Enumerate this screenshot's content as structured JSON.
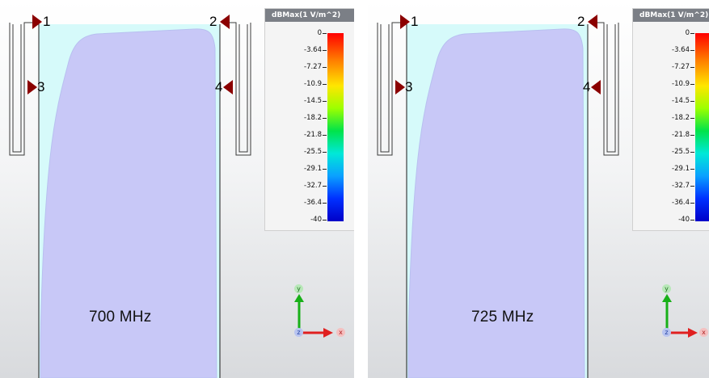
{
  "panels": [
    {
      "frequency": "700 MHz",
      "ports": [
        "1",
        "2",
        "3",
        "4"
      ],
      "legend": {
        "title": "dBMax(1 V/m^2)",
        "ticks": [
          "0",
          "-3.64",
          "-7.27",
          "-10.9",
          "-14.5",
          "-18.2",
          "-21.8",
          "-25.5",
          "-29.1",
          "-32.7",
          "-36.4",
          "-40"
        ]
      },
      "axes": {
        "x": "x",
        "y": "y",
        "z": "z"
      }
    },
    {
      "frequency": "725 MHz",
      "ports": [
        "1",
        "2",
        "3",
        "4"
      ],
      "legend": {
        "title": "dBMax(1 V/m^2)",
        "ticks": [
          "0",
          "-3.64",
          "-7.27",
          "-10.9",
          "-14.5",
          "-18.2",
          "-21.8",
          "-25.5",
          "-29.1",
          "-32.7",
          "-36.4",
          "-40"
        ]
      },
      "axes": {
        "x": "x",
        "y": "y",
        "z": "z"
      }
    }
  ],
  "colors": {
    "field_low": "#c8c8f7",
    "field_edge": "#d8fbfb",
    "port_marker": "#8b0000",
    "colorbar_top": "#ff0000",
    "colorbar_bottom": "#0000c8",
    "axis_y": "#18b018",
    "axis_x": "#e02020",
    "axis_z": "#3050c0"
  }
}
